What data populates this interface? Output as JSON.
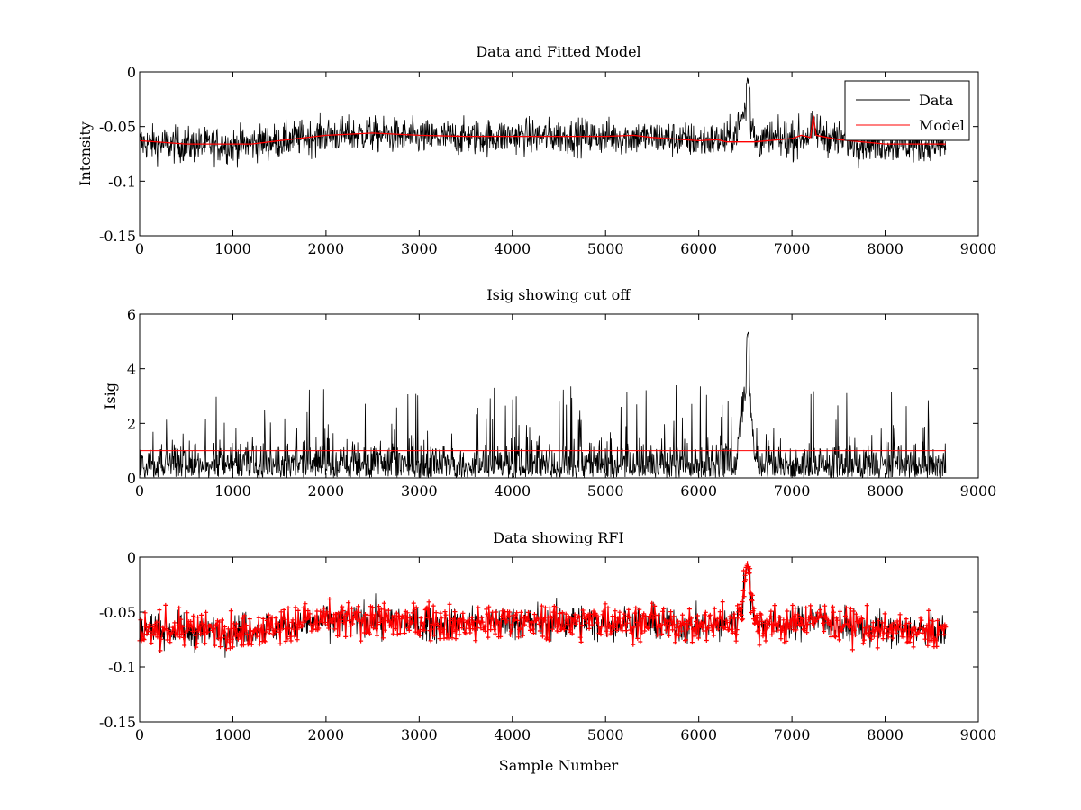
{
  "chart_data": [
    {
      "type": "line",
      "title": "Data and Fitted Model",
      "xlabel": "",
      "ylabel": "Intensity",
      "xlim": [
        0,
        9000
      ],
      "ylim": [
        -0.15,
        0
      ],
      "xticks": [
        0,
        1000,
        2000,
        3000,
        4000,
        5000,
        6000,
        7000,
        8000,
        9000
      ],
      "yticks": [
        -0.15,
        -0.1,
        -0.05,
        0
      ],
      "xtick_labels": [
        "0",
        "1000",
        "2000",
        "3000",
        "4000",
        "5000",
        "6000",
        "7000",
        "8000",
        "9000"
      ],
      "ytick_labels": [
        "-0.15",
        "-0.1",
        "-0.05",
        "0"
      ],
      "grid": false,
      "legend": "top-right",
      "series": [
        {
          "name": "Data",
          "color": "#000000",
          "x": [
            0,
            500,
            1000,
            1500,
            2000,
            2500,
            3000,
            3500,
            4000,
            4500,
            5000,
            5500,
            6000,
            6300,
            6400,
            6450,
            6500,
            6550,
            6600,
            7000,
            7100,
            7250,
            7500,
            8000,
            8650
          ],
          "y": [
            -0.065,
            -0.067,
            -0.067,
            -0.063,
            -0.058,
            -0.057,
            -0.06,
            -0.06,
            -0.059,
            -0.059,
            -0.059,
            -0.06,
            -0.063,
            -0.062,
            -0.055,
            -0.045,
            -0.035,
            -0.04,
            -0.063,
            -0.062,
            -0.06,
            -0.055,
            -0.062,
            -0.066,
            -0.068
          ],
          "noise_amplitude": 0.018,
          "peak_max": -0.005
        },
        {
          "name": "Model",
          "color": "#ff0000",
          "x": [
            0,
            500,
            1000,
            1200,
            1600,
            2000,
            2500,
            3000,
            3500,
            4000,
            4500,
            5000,
            5300,
            5500,
            6000,
            6200,
            6300,
            6350,
            6450,
            6600,
            7000,
            7100,
            7200,
            7230,
            7260,
            7500,
            8000,
            8650
          ],
          "y": [
            -0.063,
            -0.066,
            -0.066,
            -0.066,
            -0.062,
            -0.058,
            -0.056,
            -0.058,
            -0.059,
            -0.059,
            -0.059,
            -0.059,
            -0.058,
            -0.06,
            -0.063,
            -0.062,
            -0.064,
            -0.064,
            -0.064,
            -0.064,
            -0.061,
            -0.058,
            -0.06,
            -0.04,
            -0.058,
            -0.062,
            -0.066,
            -0.066
          ]
        }
      ]
    },
    {
      "type": "line",
      "title": "Isig showing cut off",
      "xlabel": "",
      "ylabel": "Isig",
      "xlim": [
        0,
        9000
      ],
      "ylim": [
        0,
        6
      ],
      "xticks": [
        0,
        1000,
        2000,
        3000,
        4000,
        5000,
        6000,
        7000,
        8000,
        9000
      ],
      "yticks": [
        0,
        2,
        4,
        6
      ],
      "xtick_labels": [
        "0",
        "1000",
        "2000",
        "3000",
        "4000",
        "5000",
        "6000",
        "7000",
        "8000",
        "9000"
      ],
      "ytick_labels": [
        "0",
        "2",
        "4",
        "6"
      ],
      "grid": false,
      "legend": "none",
      "series": [
        {
          "name": "",
          "color": "#000000",
          "x": [
            0,
            1000,
            2000,
            3000,
            4000,
            5000,
            6000,
            6400,
            6450,
            6500,
            6530,
            6560,
            6600,
            7000,
            8000,
            8650
          ],
          "y": [
            0.8,
            0.8,
            0.9,
            0.8,
            0.85,
            0.8,
            0.8,
            0.9,
            2.0,
            3.5,
            4.8,
            2.5,
            0.8,
            0.8,
            0.8,
            0.8
          ],
          "spike_max": 3.4,
          "peak_max": 5.4
        },
        {
          "name": "",
          "color": "#ff0000",
          "x": [
            0,
            8650
          ],
          "y": [
            1,
            1
          ]
        }
      ]
    },
    {
      "type": "line",
      "title": "Data showing RFI",
      "xlabel": "Sample Number",
      "ylabel": "",
      "xlim": [
        0,
        9000
      ],
      "ylim": [
        -0.15,
        0
      ],
      "xticks": [
        0,
        1000,
        2000,
        3000,
        4000,
        5000,
        6000,
        7000,
        8000,
        9000
      ],
      "yticks": [
        -0.15,
        -0.1,
        -0.05,
        0
      ],
      "xtick_labels": [
        "0",
        "1000",
        "2000",
        "3000",
        "4000",
        "5000",
        "6000",
        "7000",
        "8000",
        "9000"
      ],
      "ytick_labels": [
        "-0.15",
        "-0.1",
        "-0.05",
        "0"
      ],
      "grid": false,
      "legend": "none",
      "series": [
        {
          "name": "",
          "color": "#000000",
          "x": [
            0,
            500,
            1000,
            1500,
            2000,
            2500,
            3000,
            3500,
            4000,
            4500,
            5000,
            5500,
            6000,
            6400,
            6450,
            6500,
            6550,
            6600,
            7000,
            7200,
            7500,
            8000,
            8650
          ],
          "y": [
            -0.065,
            -0.067,
            -0.067,
            -0.063,
            -0.058,
            -0.057,
            -0.06,
            -0.06,
            -0.059,
            -0.059,
            -0.059,
            -0.06,
            -0.063,
            -0.06,
            -0.045,
            -0.025,
            -0.03,
            -0.06,
            -0.062,
            -0.055,
            -0.062,
            -0.066,
            -0.068
          ],
          "noise_amplitude": 0.018,
          "peak_max": -0.005
        }
      ],
      "markers": {
        "color": "#ff0000",
        "shape": "+",
        "description": "flagged samples"
      }
    }
  ]
}
